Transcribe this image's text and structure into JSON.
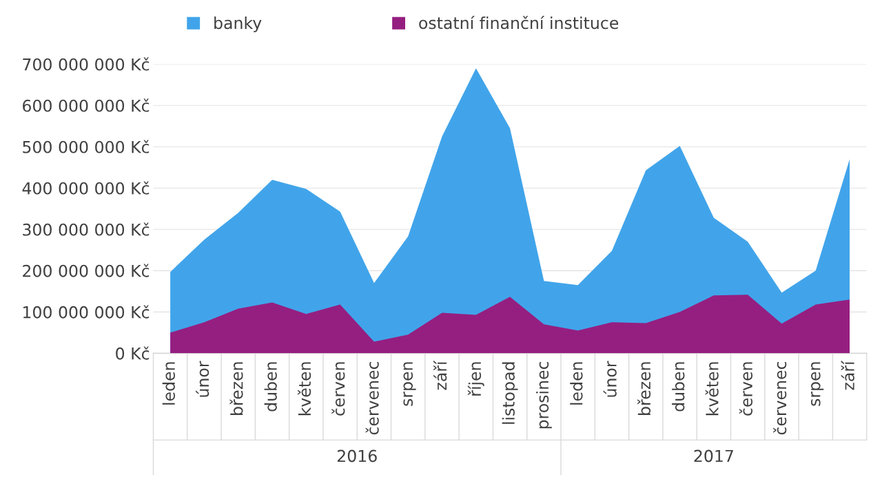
{
  "chart_data": {
    "type": "area",
    "categories": [
      "leden",
      "únor",
      "březen",
      "duben",
      "květen",
      "červen",
      "červenec",
      "srpen",
      "září",
      "říjen",
      "listopad",
      "prosinec",
      "leden",
      "únor",
      "březen",
      "duben",
      "květen",
      "červen",
      "červenec",
      "srpen",
      "září"
    ],
    "series": [
      {
        "name": "banky",
        "color": "#41a4ea",
        "values": [
          197000000,
          275000000,
          340000000,
          420000000,
          398000000,
          343000000,
          170000000,
          283000000,
          525000000,
          690000000,
          545000000,
          175000000,
          165000000,
          248000000,
          443000000,
          502000000,
          328000000,
          270000000,
          147000000,
          200000000,
          470000000
        ]
      },
      {
        "name": "ostatní finanční instituce",
        "color": "#951f80",
        "values": [
          50000000,
          75000000,
          108000000,
          123000000,
          95000000,
          118000000,
          28000000,
          45000000,
          98000000,
          93000000,
          137000000,
          70000000,
          55000000,
          75000000,
          73000000,
          100000000,
          140000000,
          142000000,
          72000000,
          118000000,
          130000000
        ]
      }
    ],
    "ylim": [
      0,
      700000000
    ],
    "yticks": [
      {
        "value": 0,
        "label": "0 Kč"
      },
      {
        "value": 100000000,
        "label": "100 000 000 Kč"
      },
      {
        "value": 200000000,
        "label": "200 000 000 Kč"
      },
      {
        "value": 300000000,
        "label": "300 000 000 Kč"
      },
      {
        "value": 400000000,
        "label": "400 000 000 Kč"
      },
      {
        "value": 500000000,
        "label": "500 000 000 Kč"
      },
      {
        "value": 600000000,
        "label": "600 000 000 Kč"
      },
      {
        "value": 700000000,
        "label": "700 000 000 Kč"
      }
    ],
    "grid": "y",
    "legend": "top",
    "annotations": [
      "2016",
      "2017"
    ]
  }
}
